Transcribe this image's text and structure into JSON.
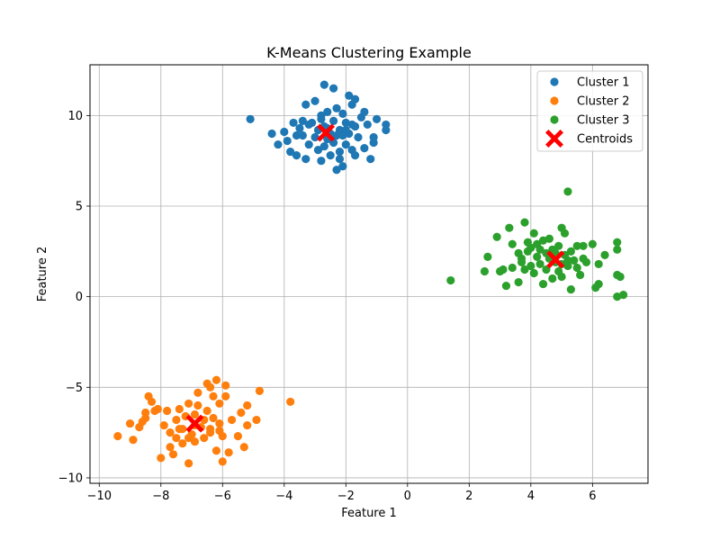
{
  "chart_data": {
    "type": "scatter",
    "title": "K-Means Clustering Example",
    "xlabel": "Feature 1",
    "ylabel": "Feature 2",
    "xlim": [
      -10.3,
      7.8
    ],
    "ylim": [
      -10.3,
      12.8
    ],
    "xticks": [
      -10,
      -8,
      -6,
      -4,
      -2,
      0,
      2,
      4,
      6
    ],
    "yticks": [
      -10,
      -5,
      0,
      5,
      10
    ],
    "xtick_labels": [
      "−10",
      "−8",
      "−6",
      "−4",
      "−2",
      "0",
      "2",
      "4",
      "6"
    ],
    "ytick_labels": [
      "−10",
      "−5",
      "0",
      "5",
      "10"
    ],
    "grid": true,
    "legend_position": "top-right",
    "series": [
      {
        "name": "Cluster 1",
        "color": "#1f77b4",
        "marker": "circle",
        "points": [
          [
            -5.1,
            9.8
          ],
          [
            -4.4,
            9.0
          ],
          [
            -4.2,
            8.4
          ],
          [
            -4.0,
            9.1
          ],
          [
            -3.9,
            8.6
          ],
          [
            -3.8,
            8.0
          ],
          [
            -3.7,
            9.6
          ],
          [
            -3.6,
            7.8
          ],
          [
            -3.5,
            9.3
          ],
          [
            -3.4,
            8.9
          ],
          [
            -3.4,
            9.7
          ],
          [
            -3.3,
            10.6
          ],
          [
            -3.3,
            7.6
          ],
          [
            -3.2,
            8.4
          ],
          [
            -3.1,
            9.6
          ],
          [
            -3.0,
            8.8
          ],
          [
            -3.0,
            10.8
          ],
          [
            -2.9,
            9.2
          ],
          [
            -2.9,
            8.1
          ],
          [
            -2.8,
            10.0
          ],
          [
            -2.8,
            7.5
          ],
          [
            -2.7,
            8.3
          ],
          [
            -2.7,
            9.4
          ],
          [
            -2.7,
            11.7
          ],
          [
            -2.6,
            8.7
          ],
          [
            -2.6,
            10.2
          ],
          [
            -2.5,
            9.0
          ],
          [
            -2.5,
            7.8
          ],
          [
            -2.4,
            11.5
          ],
          [
            -2.4,
            9.7
          ],
          [
            -2.4,
            8.5
          ],
          [
            -2.3,
            7.0
          ],
          [
            -2.3,
            10.4
          ],
          [
            -2.2,
            9.2
          ],
          [
            -2.2,
            8.0
          ],
          [
            -2.2,
            7.6
          ],
          [
            -2.1,
            10.1
          ],
          [
            -2.1,
            8.9
          ],
          [
            -2.1,
            7.2
          ],
          [
            -2.0,
            9.6
          ],
          [
            -2.0,
            8.4
          ],
          [
            -1.9,
            11.1
          ],
          [
            -1.9,
            9.0
          ],
          [
            -1.8,
            8.1
          ],
          [
            -1.8,
            10.6
          ],
          [
            -1.7,
            9.4
          ],
          [
            -1.7,
            7.8
          ],
          [
            -1.7,
            10.9
          ],
          [
            -1.6,
            8.8
          ],
          [
            -1.5,
            9.9
          ],
          [
            -1.4,
            8.2
          ],
          [
            -1.4,
            10.2
          ],
          [
            -1.3,
            9.5
          ],
          [
            -1.2,
            7.6
          ],
          [
            -1.1,
            8.8
          ],
          [
            -1.1,
            8.5
          ],
          [
            -1.0,
            9.8
          ],
          [
            -0.7,
            9.5
          ],
          [
            -0.7,
            9.2
          ],
          [
            -3.6,
            8.9
          ],
          [
            -3.2,
            9.5
          ],
          [
            -2.8,
            9.8
          ],
          [
            -2.6,
            9.3
          ],
          [
            -2.3,
            8.9
          ],
          [
            -2.0,
            9.2
          ],
          [
            -1.8,
            9.5
          ]
        ]
      },
      {
        "name": "Cluster 2",
        "color": "#ff7f0e",
        "marker": "circle",
        "points": [
          [
            -9.4,
            -7.7
          ],
          [
            -9.0,
            -7.0
          ],
          [
            -8.9,
            -7.9
          ],
          [
            -8.7,
            -7.2
          ],
          [
            -8.6,
            -6.9
          ],
          [
            -8.5,
            -6.4
          ],
          [
            -8.5,
            -6.7
          ],
          [
            -8.4,
            -5.5
          ],
          [
            -8.3,
            -5.8
          ],
          [
            -8.2,
            -6.3
          ],
          [
            -8.1,
            -6.2
          ],
          [
            -8.0,
            -8.9
          ],
          [
            -7.9,
            -7.1
          ],
          [
            -7.8,
            -6.3
          ],
          [
            -7.7,
            -8.3
          ],
          [
            -7.7,
            -7.5
          ],
          [
            -7.6,
            -8.7
          ],
          [
            -7.5,
            -6.8
          ],
          [
            -7.5,
            -7.8
          ],
          [
            -7.4,
            -6.2
          ],
          [
            -7.3,
            -8.1
          ],
          [
            -7.3,
            -7.3
          ],
          [
            -7.2,
            -6.6
          ],
          [
            -7.1,
            -9.2
          ],
          [
            -7.1,
            -5.9
          ],
          [
            -7.0,
            -7.6
          ],
          [
            -6.9,
            -6.5
          ],
          [
            -6.9,
            -8.0
          ],
          [
            -6.8,
            -5.3
          ],
          [
            -6.8,
            -6.0
          ],
          [
            -6.7,
            -7.2
          ],
          [
            -6.6,
            -7.8
          ],
          [
            -6.5,
            -4.8
          ],
          [
            -6.5,
            -6.3
          ],
          [
            -6.4,
            -5.0
          ],
          [
            -6.4,
            -7.5
          ],
          [
            -6.3,
            -5.5
          ],
          [
            -6.3,
            -6.7
          ],
          [
            -6.2,
            -4.6
          ],
          [
            -6.2,
            -8.5
          ],
          [
            -6.1,
            -7.0
          ],
          [
            -6.1,
            -5.9
          ],
          [
            -6.0,
            -9.1
          ],
          [
            -6.0,
            -7.7
          ],
          [
            -5.9,
            -5.5
          ],
          [
            -5.9,
            -4.9
          ],
          [
            -5.8,
            -8.6
          ],
          [
            -5.7,
            -6.8
          ],
          [
            -5.5,
            -7.7
          ],
          [
            -5.4,
            -6.4
          ],
          [
            -5.3,
            -8.3
          ],
          [
            -5.2,
            -7.1
          ],
          [
            -5.2,
            -6.0
          ],
          [
            -4.9,
            -6.8
          ],
          [
            -4.8,
            -5.2
          ],
          [
            -3.8,
            -5.8
          ],
          [
            -7.4,
            -7.3
          ],
          [
            -7.1,
            -7.8
          ],
          [
            -6.9,
            -7.1
          ],
          [
            -6.6,
            -6.8
          ],
          [
            -6.4,
            -7.3
          ],
          [
            -6.1,
            -7.4
          ]
        ]
      },
      {
        "name": "Cluster 3",
        "color": "#2ca02c",
        "marker": "circle",
        "points": [
          [
            1.4,
            0.9
          ],
          [
            2.5,
            1.4
          ],
          [
            2.6,
            2.2
          ],
          [
            2.9,
            3.3
          ],
          [
            3.0,
            1.4
          ],
          [
            3.1,
            1.5
          ],
          [
            3.2,
            0.6
          ],
          [
            3.3,
            3.8
          ],
          [
            3.4,
            1.6
          ],
          [
            3.4,
            2.9
          ],
          [
            3.6,
            0.8
          ],
          [
            3.6,
            2.4
          ],
          [
            3.7,
            1.9
          ],
          [
            3.7,
            2.1
          ],
          [
            3.8,
            1.5
          ],
          [
            3.8,
            4.1
          ],
          [
            3.9,
            2.5
          ],
          [
            3.9,
            3.0
          ],
          [
            4.0,
            1.7
          ],
          [
            4.0,
            2.7
          ],
          [
            4.1,
            3.5
          ],
          [
            4.1,
            1.3
          ],
          [
            4.2,
            2.2
          ],
          [
            4.2,
            2.9
          ],
          [
            4.3,
            1.8
          ],
          [
            4.4,
            0.7
          ],
          [
            4.4,
            3.1
          ],
          [
            4.5,
            2.4
          ],
          [
            4.5,
            1.5
          ],
          [
            4.6,
            3.2
          ],
          [
            4.7,
            1.0
          ],
          [
            4.7,
            2.6
          ],
          [
            4.8,
            1.9
          ],
          [
            4.9,
            2.8
          ],
          [
            4.9,
            1.4
          ],
          [
            5.0,
            3.8
          ],
          [
            5.0,
            1.1
          ],
          [
            5.1,
            2.3
          ],
          [
            5.1,
            3.5
          ],
          [
            5.2,
            5.8
          ],
          [
            5.2,
            1.7
          ],
          [
            5.3,
            2.5
          ],
          [
            5.3,
            0.4
          ],
          [
            5.4,
            2.0
          ],
          [
            5.5,
            1.6
          ],
          [
            5.5,
            2.8
          ],
          [
            5.6,
            1.2
          ],
          [
            5.7,
            2.1
          ],
          [
            5.7,
            2.8
          ],
          [
            5.8,
            1.9
          ],
          [
            6.0,
            2.9
          ],
          [
            6.1,
            0.5
          ],
          [
            6.2,
            0.7
          ],
          [
            6.2,
            1.8
          ],
          [
            6.4,
            2.3
          ],
          [
            6.8,
            3.0
          ],
          [
            6.8,
            2.6
          ],
          [
            6.8,
            1.2
          ],
          [
            6.9,
            1.1
          ],
          [
            6.8,
            0.0
          ],
          [
            7.0,
            0.1
          ],
          [
            4.3,
            2.6
          ],
          [
            4.6,
            2.1
          ],
          [
            4.8,
            2.4
          ],
          [
            5.0,
            1.8
          ],
          [
            5.2,
            2.0
          ]
        ]
      }
    ],
    "centroids": {
      "name": "Centroids",
      "color": "#ff0000",
      "marker": "x",
      "points": [
        [
          -2.65,
          9.05
        ],
        [
          -6.9,
          -7.0
        ],
        [
          4.8,
          2.05
        ]
      ]
    }
  }
}
